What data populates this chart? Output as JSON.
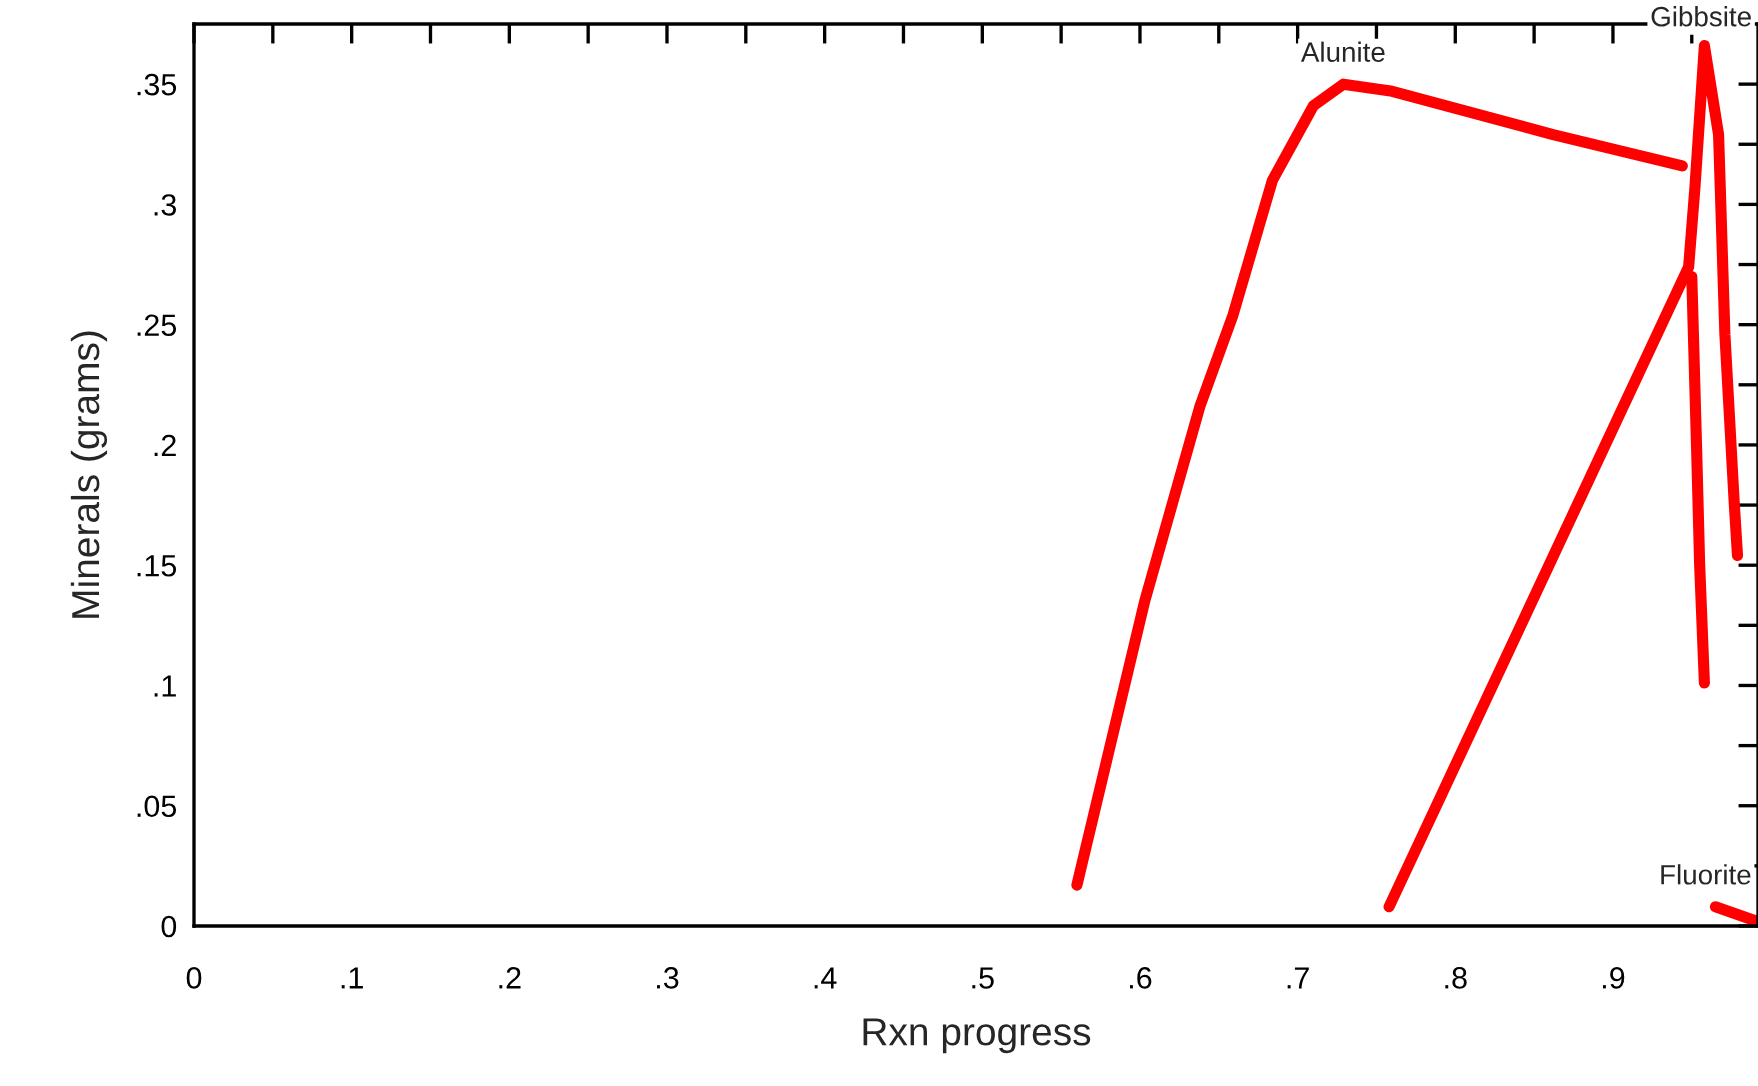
{
  "chart_data": {
    "type": "line",
    "xlabel": "Rxn progress",
    "ylabel": "Minerals (grams)",
    "xlim": [
      0,
      0.992
    ],
    "ylim": [
      0,
      0.375
    ],
    "xticks": [
      0,
      {
        "value": 0.05,
        "label": null
      },
      {
        "value": 0.1,
        "label": ".1"
      },
      {
        "value": 0.15,
        "label": null
      },
      {
        "value": 0.2,
        "label": ".2"
      },
      {
        "value": 0.25,
        "label": null
      },
      {
        "value": 0.3,
        "label": ".3"
      },
      {
        "value": 0.35,
        "label": null
      },
      {
        "value": 0.4,
        "label": ".4"
      },
      {
        "value": 0.45,
        "label": null
      },
      {
        "value": 0.5,
        "label": ".5"
      },
      {
        "value": 0.55,
        "label": null
      },
      {
        "value": 0.6,
        "label": ".6"
      },
      {
        "value": 0.65,
        "label": null
      },
      {
        "value": 0.7,
        "label": ".7"
      },
      {
        "value": 0.75,
        "label": null
      },
      {
        "value": 0.8,
        "label": ".8"
      },
      {
        "value": 0.85,
        "label": null
      },
      {
        "value": 0.9,
        "label": ".9"
      },
      {
        "value": 0.95,
        "label": null
      }
    ],
    "yticks": [
      0,
      {
        "value": 0.025,
        "label": null
      },
      {
        "value": 0.05,
        "label": ".05"
      },
      {
        "value": 0.075,
        "label": null
      },
      {
        "value": 0.1,
        "label": ".1"
      },
      {
        "value": 0.125,
        "label": null
      },
      {
        "value": 0.15,
        "label": ".15"
      },
      {
        "value": 0.175,
        "label": null
      },
      {
        "value": 0.2,
        "label": ".2"
      },
      {
        "value": 0.225,
        "label": null
      },
      {
        "value": 0.25,
        "label": ".25"
      },
      {
        "value": 0.275,
        "label": null
      },
      {
        "value": 0.3,
        "label": ".3"
      },
      {
        "value": 0.325,
        "label": null
      },
      {
        "value": 0.35,
        "label": ".35"
      }
    ],
    "grid": false,
    "legend": false,
    "series": [
      {
        "color": "#ff0000",
        "x": [
          0.56,
          0.603,
          0.638,
          0.659,
          0.684,
          0.71,
          0.729,
          0.76,
          0.862,
          0.944
        ],
        "values": [
          0.017,
          0.135,
          0.216,
          0.254,
          0.31,
          0.341,
          0.35,
          0.347,
          0.329,
          0.316
        ]
      },
      {
        "color": "#ff0000",
        "x": [
          0.758,
          0.948,
          0.952,
          0.958,
          0.967,
          0.971,
          0.977,
          0.979
        ],
        "values": [
          0.008,
          0.274,
          0.307,
          0.366,
          0.329,
          0.246,
          0.175,
          0.154
        ]
      },
      {
        "color": "#ff0000",
        "x": [
          0.95,
          0.953,
          0.955,
          0.958
        ],
        "values": [
          0.27,
          0.2,
          0.15,
          0.101
        ]
      },
      {
        "color": "#ff0000",
        "x": [
          0.965,
          0.991
        ],
        "values": [
          0.008,
          0.002
        ]
      }
    ],
    "annotations": [
      {
        "text": "Alunite",
        "x": 0.729,
        "y": 0.35
      },
      {
        "text": "Gibbsite",
        "x": 0.958,
        "y": 0.366
      },
      {
        "text": "Fluorite",
        "x": 0.965,
        "y": 0.008
      }
    ]
  }
}
